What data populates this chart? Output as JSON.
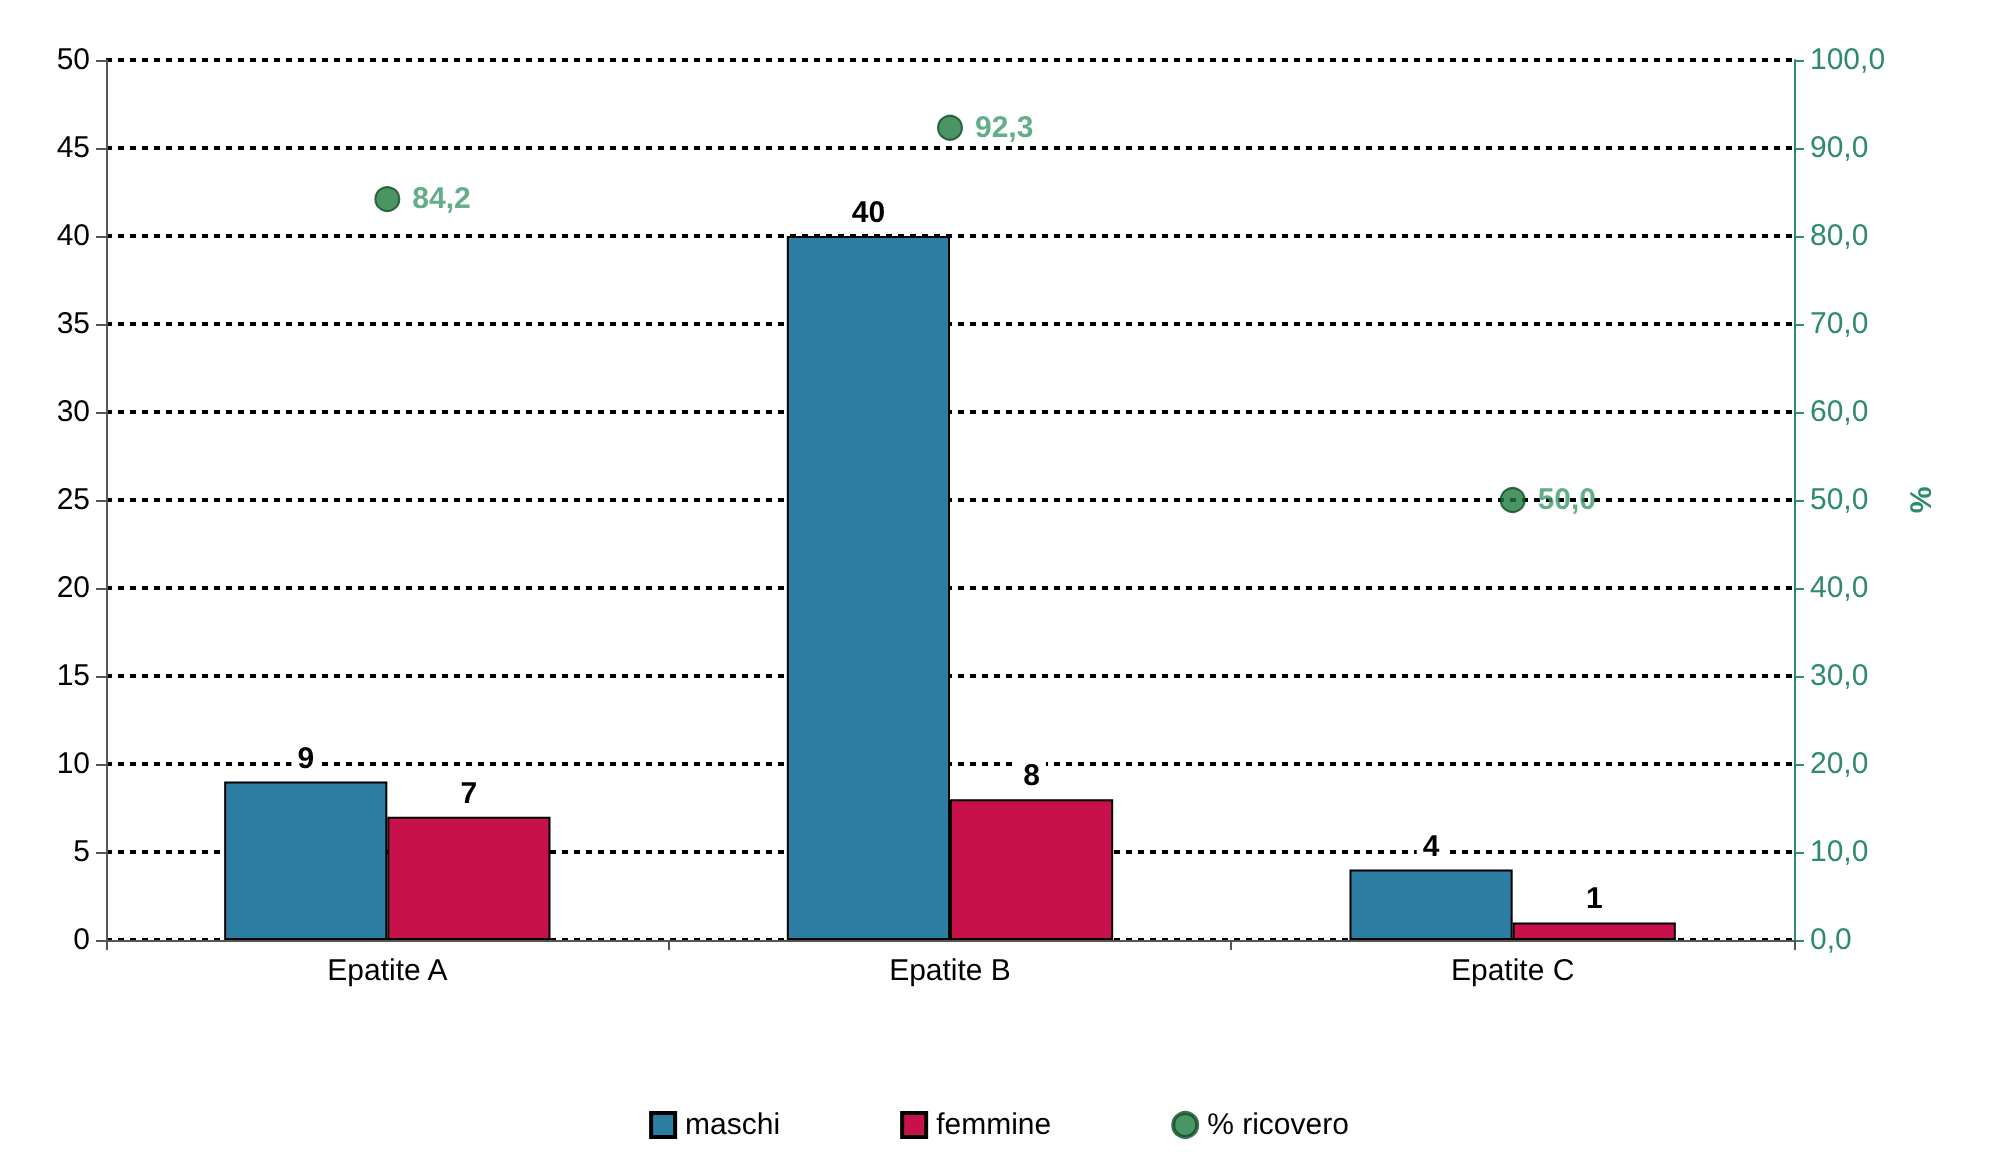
{
  "chart_data": {
    "type": "bar",
    "categories": [
      "Epatite A",
      "Epatite B",
      "Epatite C"
    ],
    "series": [
      {
        "name": "maschi",
        "color": "#2b7ea1",
        "values": [
          9,
          40,
          4
        ],
        "data_labels": true
      },
      {
        "name": "femmine",
        "color": "#c8114b",
        "values": [
          7,
          8,
          1
        ],
        "data_labels": true
      },
      {
        "name": "% ricovero",
        "type": "scatter",
        "axis": "y2",
        "color": "#1e7a3e",
        "x": [
          "Epatite A",
          "Epatite B",
          "Epatite C"
        ],
        "values": [
          84.2,
          92.3,
          50.0
        ],
        "value_labels": [
          "84,2",
          "92,3",
          "50,0"
        ],
        "marker": "circle"
      }
    ],
    "ylim": [
      0,
      50
    ],
    "yticks": [
      0,
      5,
      10,
      15,
      20,
      25,
      30,
      35,
      40,
      45,
      50
    ],
    "y2lim": [
      0,
      100
    ],
    "y2ticks": [
      {
        "value": 0,
        "label": "0,0"
      },
      {
        "value": 10,
        "label": "10,0"
      },
      {
        "value": 20,
        "label": "20,0"
      },
      {
        "value": 30,
        "label": "30,0"
      },
      {
        "value": 40,
        "label": "40,0"
      },
      {
        "value": 50,
        "label": "50,0"
      },
      {
        "value": 60,
        "label": "60,0"
      },
      {
        "value": 70,
        "label": "70,0"
      },
      {
        "value": 80,
        "label": "80,0"
      },
      {
        "value": 90,
        "label": "90,0"
      },
      {
        "value": 100,
        "label": "100,0"
      }
    ],
    "y2label": "%",
    "grid": "y",
    "legend": "bottom"
  }
}
